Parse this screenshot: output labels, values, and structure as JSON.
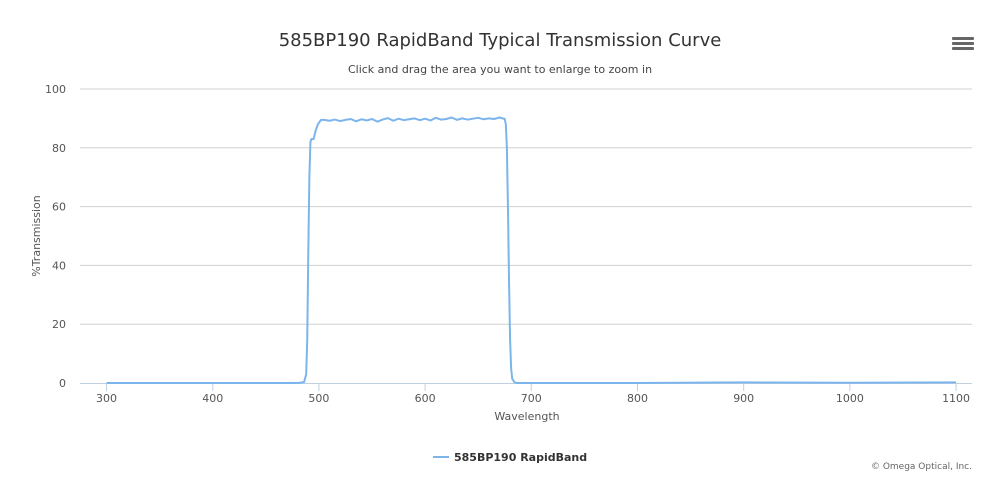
{
  "chart_data": {
    "type": "line",
    "title": "585BP190 RapidBand Typical Transmission Curve",
    "subtitle": "Click and drag the area you want to enlarge to zoom in",
    "xlabel": "Wavelength",
    "ylabel": "%Transmission",
    "xlim": [
      275,
      1115
    ],
    "ylim": [
      0,
      100
    ],
    "xticks": [
      300,
      400,
      500,
      600,
      700,
      800,
      900,
      1000,
      1100
    ],
    "yticks": [
      0,
      20,
      40,
      60,
      80,
      100
    ],
    "grid": "horizontal",
    "legend_position": "bottom-center",
    "series": [
      {
        "name": "585BP190 RapidBand",
        "color": "#7cb5ec",
        "x": [
          300,
          480,
          486,
          488,
          489,
          490,
          491,
          492,
          493,
          495,
          497,
          499,
          502,
          505,
          510,
          515,
          520,
          525,
          530,
          535,
          540,
          545,
          550,
          555,
          560,
          565,
          570,
          575,
          580,
          585,
          590,
          595,
          600,
          605,
          610,
          615,
          620,
          625,
          630,
          635,
          640,
          645,
          650,
          655,
          660,
          665,
          670,
          673,
          675,
          676,
          677,
          678,
          679,
          680,
          681,
          682,
          684,
          686,
          690,
          700,
          800,
          900,
          1000,
          1100
        ],
        "y": [
          0,
          0,
          0.3,
          3,
          15,
          45,
          70,
          82,
          83,
          83,
          86,
          88,
          89.5,
          89.5,
          89.2,
          89.6,
          89.1,
          89.5,
          89.8,
          89.0,
          89.7,
          89.3,
          89.8,
          88.9,
          89.6,
          90.1,
          89.2,
          89.9,
          89.4,
          89.7,
          90.0,
          89.4,
          89.9,
          89.3,
          90.2,
          89.6,
          89.8,
          90.3,
          89.5,
          90.0,
          89.6,
          89.9,
          90.2,
          89.7,
          90.0,
          89.8,
          90.3,
          90.0,
          89.8,
          88,
          80,
          60,
          35,
          15,
          5,
          1.5,
          0.3,
          0,
          0,
          0,
          0,
          0.2,
          0.1,
          0.2
        ]
      }
    ]
  },
  "credit": "© Omega Optical, Inc.",
  "menu_icon": "hamburger-menu-icon"
}
